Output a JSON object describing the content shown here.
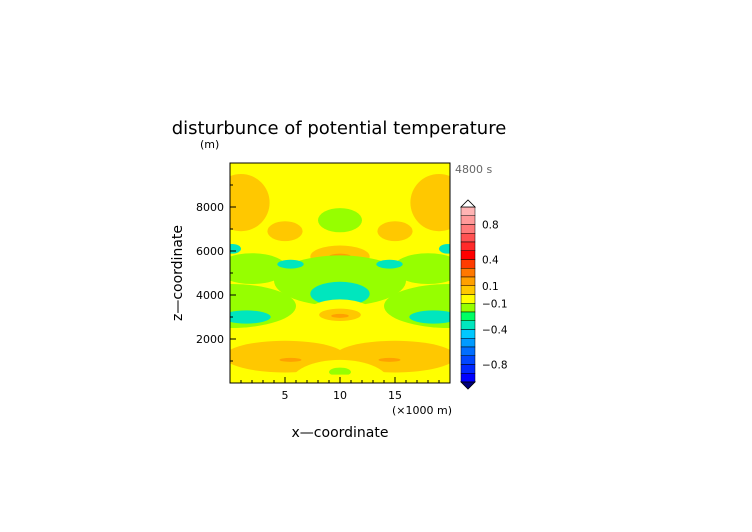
{
  "chart_data": {
    "type": "heatmap",
    "title": "disturbunce of potential temperature",
    "xlabel": "x—coordinate",
    "ylabel": "z—coordinate",
    "ylabel_unit": "(m)",
    "x_unit_note": "(×1000 m)",
    "time_label": "4800 s",
    "x_range": [
      0,
      20
    ],
    "y_range": [
      0,
      10000
    ],
    "x_ticks": [
      5,
      10,
      15
    ],
    "y_ticks": [
      2000,
      4000,
      6000,
      8000
    ],
    "colorbar": {
      "ticks": [
        0.8,
        0.4,
        0.1,
        -0.1,
        -0.4,
        -0.8
      ],
      "levels": [
        {
          "lo": 0.9,
          "hi": 1.0,
          "color": "#ffb4b4"
        },
        {
          "lo": 0.8,
          "hi": 0.9,
          "color": "#ff9a9a"
        },
        {
          "lo": 0.7,
          "hi": 0.8,
          "color": "#ff7a7a"
        },
        {
          "lo": 0.6,
          "hi": 0.7,
          "color": "#ff5252"
        },
        {
          "lo": 0.5,
          "hi": 0.6,
          "color": "#ff2a2a"
        },
        {
          "lo": 0.4,
          "hi": 0.5,
          "color": "#ff0000"
        },
        {
          "lo": 0.3,
          "hi": 0.4,
          "color": "#ff3c00"
        },
        {
          "lo": 0.2,
          "hi": 0.3,
          "color": "#ff7800"
        },
        {
          "lo": 0.1,
          "hi": 0.2,
          "color": "#ffa000"
        },
        {
          "lo": 0.0,
          "hi": 0.1,
          "color": "#ffc800"
        },
        {
          "lo": -0.1,
          "hi": 0.0,
          "color": "#ffff00"
        },
        {
          "lo": -0.2,
          "hi": -0.1,
          "color": "#96ff00"
        },
        {
          "lo": -0.3,
          "hi": -0.2,
          "color": "#00ff64"
        },
        {
          "lo": -0.4,
          "hi": -0.3,
          "color": "#00e6be"
        },
        {
          "lo": -0.5,
          "hi": -0.4,
          "color": "#00c8ff"
        },
        {
          "lo": -0.6,
          "hi": -0.5,
          "color": "#009bff"
        },
        {
          "lo": -0.7,
          "hi": -0.6,
          "color": "#006eff"
        },
        {
          "lo": -0.8,
          "hi": -0.7,
          "color": "#0046ff"
        },
        {
          "lo": -0.9,
          "hi": -0.8,
          "color": "#0028ff"
        },
        {
          "lo": -1.0,
          "hi": -0.9,
          "color": "#0000ff"
        }
      ]
    },
    "background_value": -0.05,
    "features": [
      {
        "x": 1.0,
        "y": 8200,
        "rx": 2.6,
        "ry": 1300,
        "value": 0.05
      },
      {
        "x": 19.0,
        "y": 8200,
        "rx": 2.6,
        "ry": 1300,
        "value": 0.05
      },
      {
        "x": 5.0,
        "y": 6900,
        "rx": 1.6,
        "ry": 450,
        "value": 0.05
      },
      {
        "x": 15.0,
        "y": 6900,
        "rx": 1.6,
        "ry": 450,
        "value": 0.05
      },
      {
        "x": 10.0,
        "y": 7400,
        "rx": 2.0,
        "ry": 550,
        "value": -0.15
      },
      {
        "x": 10.0,
        "y": 5750,
        "rx": 2.7,
        "ry": 500,
        "value": 0.05
      },
      {
        "x": 10.0,
        "y": 5750,
        "rx": 1.0,
        "ry": 130,
        "value": 0.15
      },
      {
        "x": 10.0,
        "y": 4650,
        "rx": 6.0,
        "ry": 1150,
        "value": -0.15
      },
      {
        "x": 2.0,
        "y": 5200,
        "rx": 3.2,
        "ry": 700,
        "value": -0.15
      },
      {
        "x": 18.0,
        "y": 5200,
        "rx": 3.2,
        "ry": 700,
        "value": -0.15
      },
      {
        "x": 0.0,
        "y": 3500,
        "rx": 6.0,
        "ry": 1000,
        "value": -0.15
      },
      {
        "x": 20.0,
        "y": 3500,
        "rx": 6.0,
        "ry": 1000,
        "value": -0.15
      },
      {
        "x": 10.0,
        "y": 4050,
        "rx": 2.7,
        "ry": 550,
        "value": -0.35
      },
      {
        "x": 0.2,
        "y": 6100,
        "rx": 0.8,
        "ry": 220,
        "value": -0.35
      },
      {
        "x": 19.8,
        "y": 6100,
        "rx": 0.8,
        "ry": 220,
        "value": -0.35
      },
      {
        "x": 5.5,
        "y": 5400,
        "rx": 1.2,
        "ry": 200,
        "value": -0.35
      },
      {
        "x": 14.5,
        "y": 5400,
        "rx": 1.2,
        "ry": 200,
        "value": -0.35
      },
      {
        "x": 1.5,
        "y": 3000,
        "rx": 2.2,
        "ry": 300,
        "value": -0.35
      },
      {
        "x": 18.5,
        "y": 3000,
        "rx": 2.2,
        "ry": 300,
        "value": -0.35
      },
      {
        "x": 10.0,
        "y": 2900,
        "rx": 3.5,
        "ry": 900,
        "value": -0.05
      },
      {
        "x": 10.0,
        "y": 3100,
        "rx": 1.9,
        "ry": 280,
        "value": 0.05
      },
      {
        "x": 10.0,
        "y": 3050,
        "rx": 0.8,
        "ry": 90,
        "value": 0.15
      },
      {
        "x": 5.0,
        "y": 1200,
        "rx": 5.5,
        "ry": 720,
        "value": 0.05
      },
      {
        "x": 15.0,
        "y": 1200,
        "rx": 5.5,
        "ry": 720,
        "value": 0.05
      },
      {
        "x": 5.5,
        "y": 1050,
        "rx": 1.0,
        "ry": 90,
        "value": 0.15
      },
      {
        "x": 14.5,
        "y": 1050,
        "rx": 1.0,
        "ry": 90,
        "value": 0.15
      },
      {
        "x": 10.0,
        "y": 0,
        "rx": 4.5,
        "ry": 1050,
        "value": -0.05
      },
      {
        "x": 10.0,
        "y": 500,
        "rx": 1.0,
        "ry": 200,
        "value": -0.15
      },
      {
        "x": 10.0,
        "y": 100,
        "rx": 20.0,
        "ry": 280,
        "value": -0.05
      }
    ]
  }
}
